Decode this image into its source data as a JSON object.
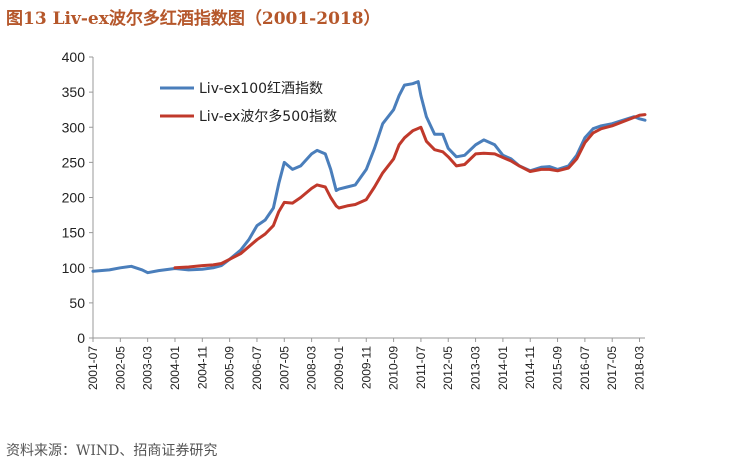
{
  "page": {
    "title": "图13 Liv-ex波尔多红酒指数图（2001-2018）",
    "source": "资料来源：WIND、招商证券研究"
  },
  "colors": {
    "title": "#b5572b",
    "liv100": "#4a7ebb",
    "bordeaux500": "#c0392b",
    "axis": "#999999"
  },
  "chart_data": {
    "type": "line",
    "title": "",
    "xlabel": "",
    "ylabel": "",
    "ylim": [
      0,
      400
    ],
    "yticks": [
      0,
      50,
      100,
      150,
      200,
      250,
      300,
      350,
      400
    ],
    "xticks": [
      "2001-07",
      "2002-05",
      "2003-03",
      "2004-01",
      "2004-11",
      "2005-09",
      "2006-07",
      "2007-05",
      "2008-03",
      "2009-01",
      "2009-11",
      "2010-09",
      "2011-07",
      "2012-05",
      "2013-03",
      "2014-01",
      "2014-11",
      "2015-09",
      "2016-07",
      "2017-05",
      "2018-03"
    ],
    "grid": false,
    "legend_position": "top-left",
    "series": [
      {
        "name": "Liv-ex100红酒指数",
        "color": "#4a7ebb",
        "points": [
          [
            "2001-07",
            95
          ],
          [
            "2002-01",
            97
          ],
          [
            "2002-05",
            100
          ],
          [
            "2002-09",
            102
          ],
          [
            "2003-01",
            97
          ],
          [
            "2003-03",
            93
          ],
          [
            "2003-07",
            96
          ],
          [
            "2004-01",
            99
          ],
          [
            "2004-06",
            97
          ],
          [
            "2004-11",
            98
          ],
          [
            "2005-03",
            100
          ],
          [
            "2005-06",
            103
          ],
          [
            "2005-09",
            112
          ],
          [
            "2006-01",
            125
          ],
          [
            "2006-04",
            140
          ],
          [
            "2006-07",
            160
          ],
          [
            "2006-10",
            168
          ],
          [
            "2007-01",
            185
          ],
          [
            "2007-03",
            220
          ],
          [
            "2007-05",
            250
          ],
          [
            "2007-08",
            240
          ],
          [
            "2007-11",
            245
          ],
          [
            "2008-03",
            262
          ],
          [
            "2008-05",
            267
          ],
          [
            "2008-08",
            262
          ],
          [
            "2008-10",
            240
          ],
          [
            "2008-12",
            210
          ],
          [
            "2009-01",
            212
          ],
          [
            "2009-04",
            215
          ],
          [
            "2009-07",
            218
          ],
          [
            "2009-11",
            240
          ],
          [
            "2010-02",
            270
          ],
          [
            "2010-05",
            305
          ],
          [
            "2010-09",
            325
          ],
          [
            "2010-11",
            345
          ],
          [
            "2011-01",
            360
          ],
          [
            "2011-04",
            362
          ],
          [
            "2011-06",
            365
          ],
          [
            "2011-07",
            345
          ],
          [
            "2011-09",
            315
          ],
          [
            "2011-12",
            290
          ],
          [
            "2012-03",
            290
          ],
          [
            "2012-05",
            270
          ],
          [
            "2012-08",
            258
          ],
          [
            "2012-11",
            260
          ],
          [
            "2013-03",
            275
          ],
          [
            "2013-06",
            282
          ],
          [
            "2013-10",
            275
          ],
          [
            "2014-01",
            260
          ],
          [
            "2014-04",
            255
          ],
          [
            "2014-07",
            245
          ],
          [
            "2014-11",
            238
          ],
          [
            "2015-03",
            243
          ],
          [
            "2015-06",
            244
          ],
          [
            "2015-09",
            240
          ],
          [
            "2016-01",
            245
          ],
          [
            "2016-04",
            260
          ],
          [
            "2016-07",
            285
          ],
          [
            "2016-10",
            298
          ],
          [
            "2017-01",
            302
          ],
          [
            "2017-05",
            305
          ],
          [
            "2017-09",
            310
          ],
          [
            "2018-01",
            315
          ],
          [
            "2018-03",
            312
          ],
          [
            "2018-05",
            310
          ]
        ]
      },
      {
        "name": "Liv-ex波尔多500指数",
        "color": "#c0392b",
        "points": [
          [
            "2004-01",
            100
          ],
          [
            "2004-06",
            101
          ],
          [
            "2004-11",
            103
          ],
          [
            "2005-03",
            104
          ],
          [
            "2005-06",
            106
          ],
          [
            "2005-09",
            112
          ],
          [
            "2006-01",
            120
          ],
          [
            "2006-04",
            130
          ],
          [
            "2006-07",
            140
          ],
          [
            "2006-10",
            148
          ],
          [
            "2007-01",
            160
          ],
          [
            "2007-03",
            180
          ],
          [
            "2007-05",
            193
          ],
          [
            "2007-08",
            192
          ],
          [
            "2007-11",
            200
          ],
          [
            "2008-03",
            213
          ],
          [
            "2008-05",
            218
          ],
          [
            "2008-08",
            215
          ],
          [
            "2008-10",
            200
          ],
          [
            "2008-12",
            188
          ],
          [
            "2009-01",
            185
          ],
          [
            "2009-04",
            188
          ],
          [
            "2009-07",
            190
          ],
          [
            "2009-11",
            197
          ],
          [
            "2010-02",
            215
          ],
          [
            "2010-05",
            235
          ],
          [
            "2010-09",
            255
          ],
          [
            "2010-11",
            275
          ],
          [
            "2011-01",
            285
          ],
          [
            "2011-04",
            295
          ],
          [
            "2011-07",
            300
          ],
          [
            "2011-09",
            280
          ],
          [
            "2011-12",
            268
          ],
          [
            "2012-03",
            265
          ],
          [
            "2012-05",
            258
          ],
          [
            "2012-08",
            245
          ],
          [
            "2012-11",
            247
          ],
          [
            "2013-03",
            262
          ],
          [
            "2013-06",
            263
          ],
          [
            "2013-10",
            262
          ],
          [
            "2014-01",
            257
          ],
          [
            "2014-04",
            252
          ],
          [
            "2014-07",
            245
          ],
          [
            "2014-11",
            237
          ],
          [
            "2015-03",
            240
          ],
          [
            "2015-06",
            240
          ],
          [
            "2015-09",
            238
          ],
          [
            "2016-01",
            242
          ],
          [
            "2016-04",
            255
          ],
          [
            "2016-07",
            278
          ],
          [
            "2016-10",
            292
          ],
          [
            "2017-01",
            298
          ],
          [
            "2017-05",
            302
          ],
          [
            "2017-09",
            308
          ],
          [
            "2018-01",
            314
          ],
          [
            "2018-03",
            317
          ],
          [
            "2018-05",
            318
          ]
        ]
      }
    ]
  }
}
